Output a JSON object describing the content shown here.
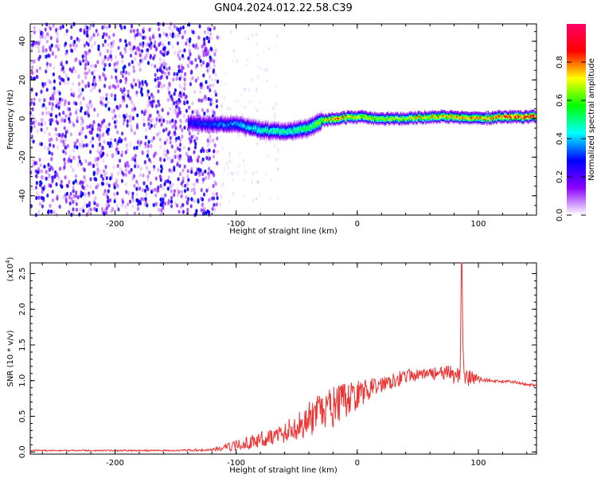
{
  "title": "GN04.2024.012.22.58.C39",
  "chart_data": [
    {
      "type": "heatmap",
      "title": "GN04.2024.012.22.58.C39",
      "xlabel": "Height of straight line (km)",
      "ylabel": "Frequency (Hz)",
      "xlim": [
        -270,
        148
      ],
      "ylim": [
        -50,
        49
      ],
      "xticks": [
        -200,
        -100,
        0,
        100
      ],
      "yticks": [
        -40,
        -20,
        0,
        20,
        40
      ],
      "colorbar": {
        "label": "Normalized spectral amplitude",
        "range": [
          0,
          1
        ],
        "ticks": [
          0.0,
          0.2,
          0.4,
          0.6,
          0.8
        ],
        "colormap": [
          "#ffffff",
          "#8b00ff",
          "#0000ff",
          "#00ffff",
          "#00ff00",
          "#ffff00",
          "#ff0000",
          "#ff0066"
        ]
      },
      "ridge_frequency": {
        "x": [
          -140,
          -120,
          -100,
          -80,
          -60,
          -40,
          -30,
          -20,
          0,
          20,
          40,
          60,
          80,
          100,
          120,
          148
        ],
        "y": [
          -2,
          -3,
          -3,
          -6,
          -7,
          -5,
          -1,
          0,
          1,
          0,
          0,
          1,
          1,
          0,
          1,
          1
        ],
        "amplitude": [
          0.3,
          0.35,
          0.4,
          0.5,
          0.5,
          0.6,
          0.7,
          0.85,
          0.75,
          0.7,
          0.7,
          0.8,
          0.8,
          0.85,
          0.9,
          0.9
        ]
      },
      "noise_region": {
        "x_range": [
          -270,
          -120
        ],
        "freq_range": [
          -50,
          49
        ]
      }
    },
    {
      "type": "line",
      "xlabel": "Height of straight line (km)",
      "ylabel": "SNR (10 * v/v)",
      "yscale_label": "(x10",
      "yscale_exp": "4",
      "ylabel_suffix": ")",
      "xlim": [
        -270,
        148
      ],
      "ylim": [
        -0.03,
        2.65
      ],
      "xticks": [
        -200,
        -100,
        0,
        100
      ],
      "yticks": [
        0.0,
        0.5,
        1.0,
        1.5,
        2.0,
        2.5
      ],
      "line_color": "#ee3333",
      "series": [
        {
          "x": [
            -270,
            -200,
            -150,
            -120,
            -110,
            -100,
            -90,
            -80,
            -70,
            -60,
            -50,
            -40,
            -30,
            -20,
            -10,
            0,
            10,
            20,
            30,
            40,
            50,
            60,
            70,
            80,
            85,
            86,
            88,
            90,
            100,
            110,
            120,
            130,
            140,
            148
          ],
          "y": [
            0.02,
            0.02,
            0.02,
            0.03,
            0.06,
            0.09,
            0.13,
            0.18,
            0.22,
            0.27,
            0.36,
            0.45,
            0.55,
            0.62,
            0.72,
            0.8,
            0.88,
            0.95,
            1.02,
            1.06,
            1.08,
            1.1,
            1.1,
            1.08,
            1.1,
            2.65,
            1.05,
            1.05,
            1.02,
            1.0,
            0.99,
            0.98,
            0.95,
            0.93
          ],
          "noise_amplitude": [
            0.01,
            0.01,
            0.01,
            0.02,
            0.05,
            0.07,
            0.09,
            0.11,
            0.12,
            0.15,
            0.2,
            0.25,
            0.28,
            0.3,
            0.25,
            0.2,
            0.15,
            0.12,
            0.12,
            0.1,
            0.08,
            0.08,
            0.1,
            0.15,
            0.2,
            0,
            0.2,
            0.15,
            0.05,
            0.02,
            0.02,
            0.02,
            0.02,
            0.02
          ]
        }
      ]
    }
  ]
}
